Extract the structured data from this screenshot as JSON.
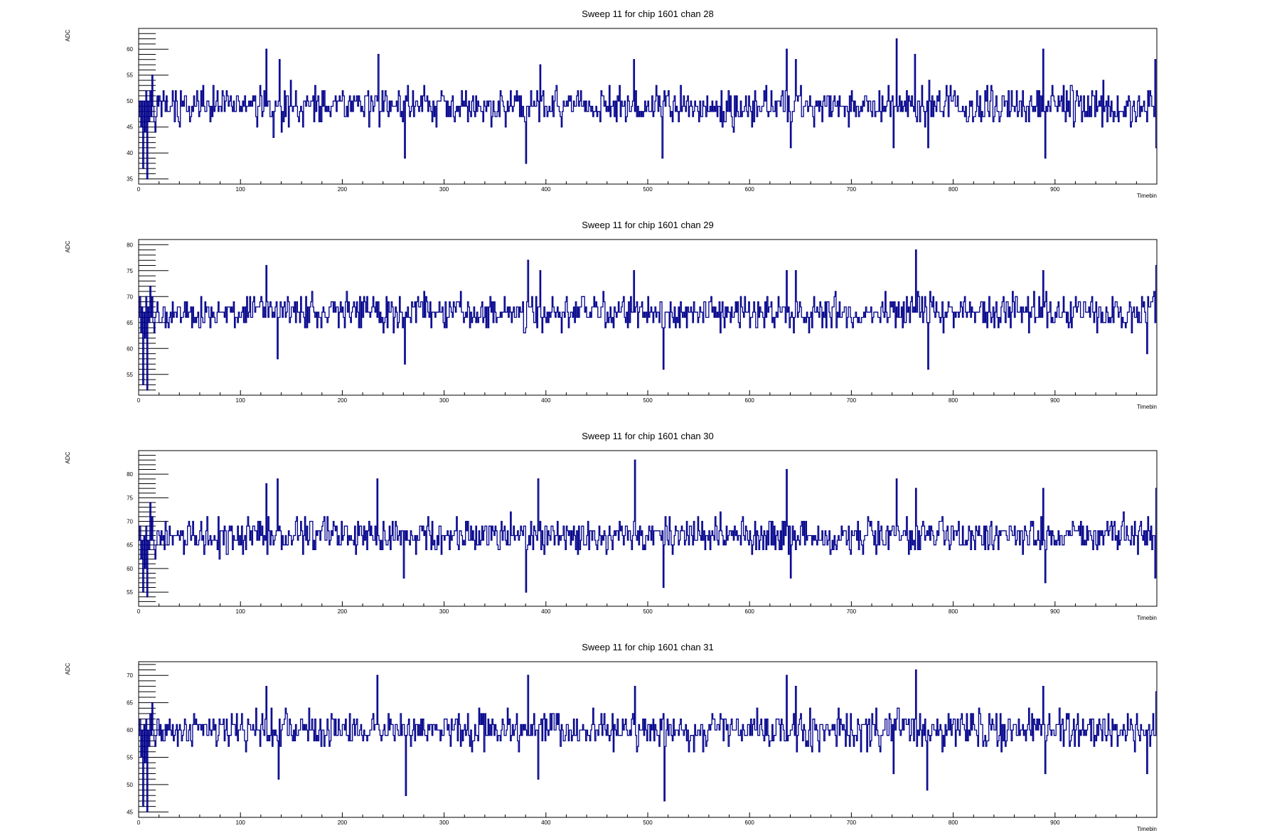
{
  "chart_data": [
    {
      "type": "line",
      "title": "Sweep 11 for chip 1601 chan 28",
      "xlabel": "Timebin",
      "ylabel": "ADC",
      "xlim": [
        0,
        1000
      ],
      "ylim": [
        34,
        64
      ],
      "xticks": [
        "0",
        "100",
        "200",
        "300",
        "400",
        "500",
        "600",
        "700",
        "800",
        "900"
      ],
      "yticks": [
        "35",
        "40",
        "45",
        "50",
        "55",
        "60"
      ],
      "line_color": "#00008b",
      "baseline": 49,
      "noise": 1.8,
      "spikes": [
        {
          "x": 125,
          "y": 60
        },
        {
          "x": 132,
          "y": 43
        },
        {
          "x": 138,
          "y": 58
        },
        {
          "x": 235,
          "y": 59
        },
        {
          "x": 261,
          "y": 39
        },
        {
          "x": 380,
          "y": 38
        },
        {
          "x": 394,
          "y": 57
        },
        {
          "x": 486,
          "y": 58
        },
        {
          "x": 514,
          "y": 39
        },
        {
          "x": 636,
          "y": 60
        },
        {
          "x": 640,
          "y": 41
        },
        {
          "x": 645,
          "y": 58
        },
        {
          "x": 744,
          "y": 62
        },
        {
          "x": 741,
          "y": 41
        },
        {
          "x": 762,
          "y": 59
        },
        {
          "x": 775,
          "y": 41
        },
        {
          "x": 888,
          "y": 60
        },
        {
          "x": 890,
          "y": 39
        },
        {
          "x": 998,
          "y": 58
        },
        {
          "x": 999,
          "y": 41
        }
      ],
      "start": [
        47,
        50,
        45,
        50,
        37,
        50,
        44,
        52,
        35,
        50,
        46,
        52,
        47,
        55,
        49,
        46,
        44,
        47,
        51
      ]
    },
    {
      "type": "line",
      "title": "Sweep 11 for chip 1601 chan 29",
      "xlabel": "Timebin",
      "ylabel": "ADC",
      "xlim": [
        0,
        1000
      ],
      "ylim": [
        51,
        81
      ],
      "xticks": [
        "0",
        "100",
        "200",
        "300",
        "400",
        "500",
        "600",
        "700",
        "800",
        "900"
      ],
      "yticks": [
        "55",
        "60",
        "65",
        "70",
        "75",
        "80"
      ],
      "line_color": "#00008b",
      "baseline": 67,
      "noise": 1.7,
      "spikes": [
        {
          "x": 125,
          "y": 76
        },
        {
          "x": 136,
          "y": 58
        },
        {
          "x": 261,
          "y": 57
        },
        {
          "x": 382,
          "y": 77
        },
        {
          "x": 394,
          "y": 75
        },
        {
          "x": 486,
          "y": 75
        },
        {
          "x": 515,
          "y": 56
        },
        {
          "x": 636,
          "y": 75
        },
        {
          "x": 645,
          "y": 75
        },
        {
          "x": 763,
          "y": 79
        },
        {
          "x": 775,
          "y": 56
        },
        {
          "x": 888,
          "y": 75
        },
        {
          "x": 990,
          "y": 59
        },
        {
          "x": 999,
          "y": 76
        }
      ],
      "start": [
        66,
        70,
        63,
        68,
        53,
        67,
        62,
        70,
        52,
        68,
        65,
        72,
        66,
        70,
        65,
        63,
        66,
        67,
        69
      ]
    },
    {
      "type": "line",
      "title": "Sweep 11 for chip 1601 chan 30",
      "xlabel": "Timebin",
      "ylabel": "ADC",
      "xlim": [
        0,
        1000
      ],
      "ylim": [
        52,
        85
      ],
      "xticks": [
        "0",
        "100",
        "200",
        "300",
        "400",
        "500",
        "600",
        "700",
        "800",
        "900"
      ],
      "yticks": [
        "55",
        "60",
        "65",
        "70",
        "75",
        "80"
      ],
      "line_color": "#00008b",
      "baseline": 67,
      "noise": 1.8,
      "spikes": [
        {
          "x": 125,
          "y": 78
        },
        {
          "x": 136,
          "y": 79
        },
        {
          "x": 234,
          "y": 79
        },
        {
          "x": 260,
          "y": 58
        },
        {
          "x": 380,
          "y": 55
        },
        {
          "x": 392,
          "y": 79
        },
        {
          "x": 487,
          "y": 83
        },
        {
          "x": 515,
          "y": 56
        },
        {
          "x": 636,
          "y": 81
        },
        {
          "x": 640,
          "y": 58
        },
        {
          "x": 744,
          "y": 79
        },
        {
          "x": 763,
          "y": 77
        },
        {
          "x": 888,
          "y": 77
        },
        {
          "x": 890,
          "y": 57
        },
        {
          "x": 998,
          "y": 58
        },
        {
          "x": 999,
          "y": 77
        }
      ],
      "start": [
        66,
        69,
        62,
        66,
        55,
        67,
        60,
        69,
        54,
        66,
        64,
        74,
        66,
        71,
        66,
        64,
        62,
        65,
        68
      ]
    },
    {
      "type": "line",
      "title": "Sweep 11 for chip 1601 chan 31",
      "xlabel": "Timebin",
      "ylabel": "ADC",
      "xlim": [
        0,
        1000
      ],
      "ylim": [
        44,
        72.5
      ],
      "xticks": [
        "0",
        "100",
        "200",
        "300",
        "400",
        "500",
        "600",
        "700",
        "800",
        "900"
      ],
      "yticks": [
        "45",
        "50",
        "55",
        "60",
        "65",
        "70"
      ],
      "line_color": "#00008b",
      "baseline": 60,
      "noise": 1.7,
      "spikes": [
        {
          "x": 125,
          "y": 68
        },
        {
          "x": 137,
          "y": 51
        },
        {
          "x": 234,
          "y": 70
        },
        {
          "x": 262,
          "y": 48
        },
        {
          "x": 382,
          "y": 70
        },
        {
          "x": 392,
          "y": 51
        },
        {
          "x": 487,
          "y": 68
        },
        {
          "x": 516,
          "y": 47
        },
        {
          "x": 636,
          "y": 70
        },
        {
          "x": 645,
          "y": 68
        },
        {
          "x": 741,
          "y": 52
        },
        {
          "x": 763,
          "y": 71
        },
        {
          "x": 774,
          "y": 49
        },
        {
          "x": 888,
          "y": 68
        },
        {
          "x": 890,
          "y": 52
        },
        {
          "x": 990,
          "y": 52
        },
        {
          "x": 999,
          "y": 67
        }
      ],
      "start": [
        59,
        62,
        55,
        60,
        46,
        61,
        54,
        62,
        45,
        60,
        57,
        63,
        59,
        65,
        60,
        58,
        57,
        59,
        62
      ]
    }
  ]
}
